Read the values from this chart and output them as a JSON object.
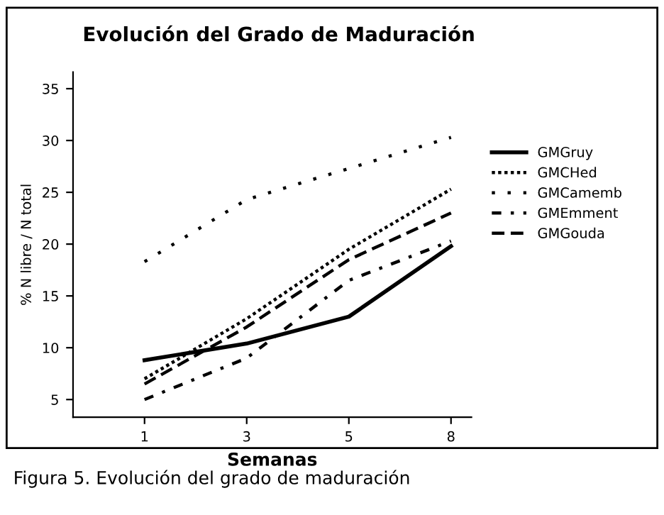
{
  "chart_data": {
    "type": "line",
    "title": "Evolución del Grado de Maduración",
    "xlabel": "Semanas",
    "ylabel": "% N libre / N total",
    "categories": [
      "1",
      "3",
      "5",
      "8"
    ],
    "series": [
      {
        "name": "GMGruy",
        "color": "#000000",
        "line_style": "solid",
        "values": [
          8.8,
          10.4,
          13,
          19.8
        ]
      },
      {
        "name": "GMCHed",
        "color": "#000000",
        "line_style": "dotted",
        "values": [
          7,
          12.8,
          19.5,
          25.3
        ]
      },
      {
        "name": "GMCamemb",
        "color": "#000000",
        "line_style": "sparse",
        "values": [
          18.3,
          24.3,
          27.3,
          30.3
        ]
      },
      {
        "name": "GMEmment",
        "color": "#000000",
        "line_style": "dashdot",
        "values": [
          5,
          9,
          16.5,
          20.3
        ]
      },
      {
        "name": "GMGouda",
        "color": "#000000",
        "line_style": "dashed",
        "values": [
          6.5,
          12,
          18.5,
          23
        ]
      }
    ],
    "ylim": [
      3.3,
      36.6
    ],
    "yticks": [
      5,
      10,
      15,
      20,
      25,
      30,
      35
    ],
    "grid": false,
    "legend": "right",
    "marker": "none",
    "annotations": [
      "Figura 5. Evolución del grado de maduración"
    ]
  }
}
